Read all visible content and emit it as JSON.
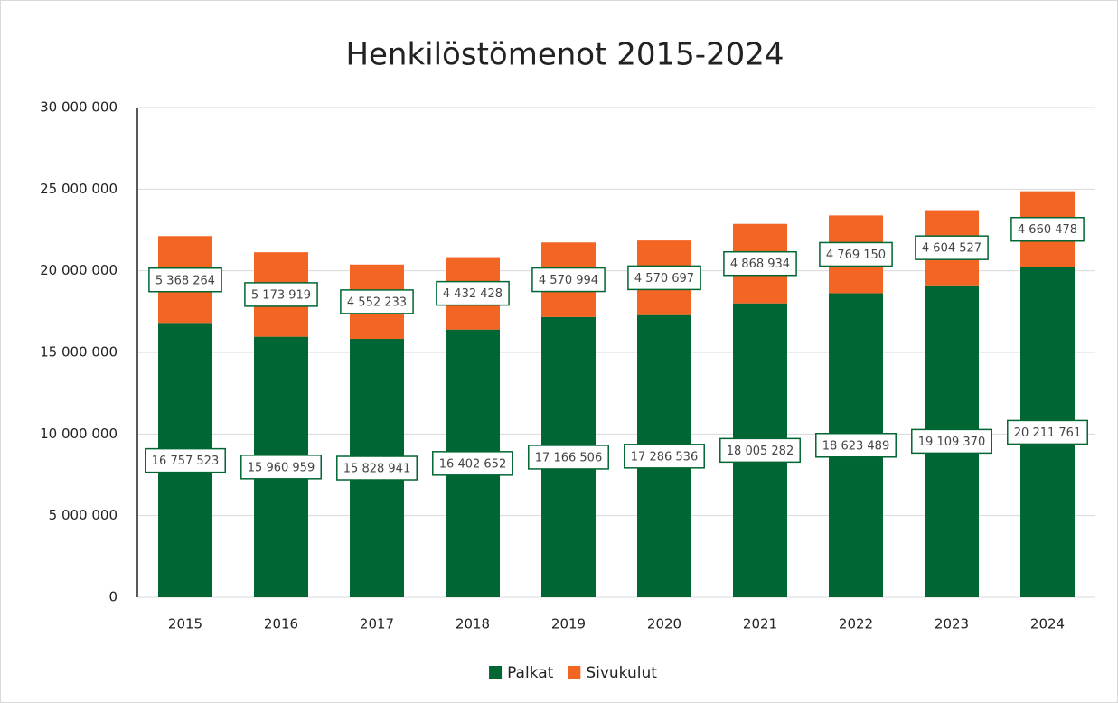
{
  "chart_data": {
    "type": "stacked_bar",
    "title": "Henkilöstömenot 2015-2024",
    "categories": [
      "2015",
      "2016",
      "2017",
      "2018",
      "2019",
      "2020",
      "2021",
      "2022",
      "2023",
      "2024"
    ],
    "series": [
      {
        "name": "Palkat",
        "color": "#006633",
        "values": [
          16757523,
          15960959,
          15828941,
          16402652,
          17166506,
          17286536,
          18005282,
          18623489,
          19109370,
          20211761
        ],
        "value_labels": [
          "16 757 523",
          "15 960 959",
          "15 828 941",
          "16 402 652",
          "17 166 506",
          "17 286 536",
          "18 005 282",
          "18 623 489",
          "19 109 370",
          "20 211 761"
        ]
      },
      {
        "name": "Sivukulut",
        "color": "#f26522",
        "values": [
          5368264,
          5173919,
          4552233,
          4432428,
          4570994,
          4570697,
          4868934,
          4769150,
          4604527,
          4660478
        ],
        "value_labels": [
          "5 368 264",
          "5 173 919",
          "4 552 233",
          "4 432 428",
          "4 570 994",
          "4 570 697",
          "4 868 934",
          "4 769 150",
          "4 604 527",
          "4 660 478"
        ]
      }
    ],
    "ylim": [
      0,
      30000000
    ],
    "yticks": [
      0,
      {
        "value": 5000000,
        "label": "5 000 000"
      },
      {
        "value": 10000000,
        "label": "10 000 000"
      },
      {
        "value": 15000000,
        "label": "15 000 000"
      },
      {
        "value": 20000000,
        "label": "20 000 000"
      },
      {
        "value": 25000000,
        "label": "25 000 000"
      },
      {
        "value": 30000000,
        "label": "30 000 000"
      }
    ],
    "grid": true,
    "legend": "bottom"
  }
}
